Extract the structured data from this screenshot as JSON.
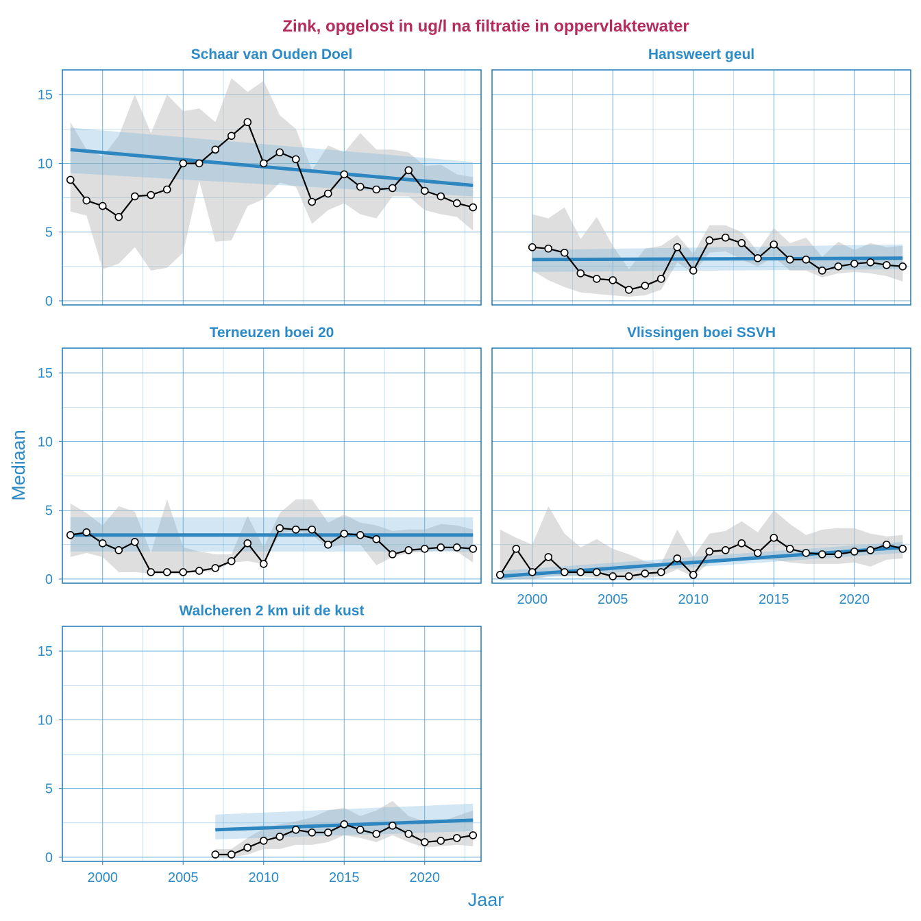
{
  "colors": {
    "title": "#B52B5C",
    "accent": "#2C8BC6",
    "trend": "#2E86C1",
    "band_gray": "#BDBDBD",
    "band_blue": "#6BAED6"
  },
  "chart_data": {
    "type": "line",
    "title": "Zink, opgelost in ug/l na filtratie in oppervlaktewater",
    "xlabel": "Jaar",
    "ylabel": "Mediaan",
    "xlim": [
      1997.5,
      2023.5
    ],
    "ylim": [
      -0.3,
      16.8
    ],
    "x_ticks": [
      2000,
      2005,
      2010,
      2015,
      2020
    ],
    "y_ticks": [
      0,
      5,
      10,
      15
    ],
    "panels": [
      {
        "name": "Schaar van Ouden Doel",
        "x": [
          1998,
          1999,
          2000,
          2001,
          2002,
          2003,
          2004,
          2005,
          2006,
          2007,
          2008,
          2009,
          2010,
          2011,
          2012,
          2013,
          2014,
          2015,
          2016,
          2017,
          2018,
          2019,
          2020,
          2021,
          2022,
          2023
        ],
        "median": [
          8.8,
          7.3,
          6.9,
          6.1,
          7.6,
          7.7,
          8.1,
          10.0,
          10.0,
          11.0,
          12.0,
          13.0,
          10.0,
          10.8,
          10.3,
          7.2,
          7.8,
          9.2,
          8.3,
          8.1,
          8.2,
          9.5,
          8.0,
          7.6,
          7.1,
          6.8
        ],
        "lower": [
          6.5,
          6.2,
          2.3,
          2.7,
          3.9,
          2.2,
          2.4,
          3.5,
          8.7,
          4.3,
          4.4,
          6.9,
          7.4,
          8.6,
          8.3,
          5.6,
          6.6,
          7.1,
          6.3,
          6.0,
          7.6,
          7.6,
          6.6,
          6.3,
          6.1,
          5.1
        ],
        "upper": [
          13.0,
          11.0,
          10.5,
          12.0,
          15.0,
          12.2,
          15.0,
          13.8,
          14.0,
          13.0,
          16.2,
          15.2,
          16.0,
          13.5,
          12.5,
          9.5,
          11.3,
          10.8,
          12.2,
          11.0,
          11.0,
          10.8,
          9.8,
          9.9,
          9.2,
          9.0
        ],
        "trend": {
          "start": [
            1998,
            11.0
          ],
          "end": [
            2023,
            8.4
          ]
        },
        "trend_ci_lower": [
          9.3,
          7.6
        ],
        "trend_ci_upper": [
          12.6,
          10.1
        ]
      },
      {
        "name": "Hansweert geul",
        "x": [
          2000,
          2001,
          2002,
          2003,
          2004,
          2005,
          2006,
          2007,
          2008,
          2009,
          2010,
          2011,
          2012,
          2013,
          2014,
          2015,
          2016,
          2017,
          2018,
          2019,
          2020,
          2021,
          2022,
          2023
        ],
        "median": [
          3.9,
          3.8,
          3.5,
          2.0,
          1.6,
          1.5,
          0.8,
          1.1,
          1.6,
          3.9,
          2.2,
          4.4,
          4.6,
          4.2,
          3.1,
          4.1,
          3.0,
          3.0,
          2.2,
          2.5,
          2.7,
          2.8,
          2.6,
          2.5
        ],
        "lower": [
          2.2,
          1.5,
          1.0,
          0.6,
          0.5,
          0.4,
          0.3,
          0.4,
          0.8,
          2.8,
          2.0,
          3.5,
          3.6,
          3.0,
          2.5,
          3.2,
          2.2,
          2.2,
          1.7,
          2.0,
          2.1,
          2.0,
          1.8,
          1.4
        ],
        "upper": [
          6.3,
          6.0,
          6.8,
          4.5,
          6.1,
          4.0,
          2.3,
          3.8,
          4.0,
          4.8,
          3.4,
          5.5,
          5.5,
          5.0,
          3.6,
          5.3,
          4.2,
          4.6,
          3.2,
          4.3,
          3.7,
          4.2,
          3.9,
          4.0
        ],
        "trend": {
          "start": [
            2000,
            3.0
          ],
          "end": [
            2023,
            3.1
          ]
        },
        "trend_ci_lower": [
          2.1,
          2.3
        ],
        "trend_ci_upper": [
          3.7,
          4.1
        ]
      },
      {
        "name": "Terneuzen boei 20",
        "x": [
          1998,
          1999,
          2000,
          2001,
          2002,
          2003,
          2004,
          2005,
          2006,
          2007,
          2008,
          2009,
          2010,
          2011,
          2012,
          2013,
          2014,
          2015,
          2016,
          2017,
          2018,
          2019,
          2020,
          2021,
          2022,
          2023
        ],
        "median": [
          3.2,
          3.4,
          2.6,
          2.1,
          2.7,
          0.5,
          0.5,
          0.5,
          0.6,
          0.8,
          1.3,
          2.6,
          1.1,
          3.7,
          3.6,
          3.6,
          2.5,
          3.3,
          3.2,
          2.9,
          1.8,
          2.1,
          2.2,
          2.3,
          2.3,
          2.2
        ],
        "lower": [
          1.6,
          1.9,
          1.6,
          0.5,
          0.5,
          0.4,
          0.4,
          0.4,
          0.5,
          0.6,
          1.2,
          1.3,
          1.1,
          3.3,
          3.5,
          3.2,
          2.3,
          2.5,
          2.5,
          1.0,
          1.6,
          1.9,
          2.0,
          2.1,
          2.0,
          1.2
        ],
        "upper": [
          5.5,
          4.8,
          3.9,
          5.3,
          4.9,
          1.9,
          5.8,
          2.3,
          2.0,
          1.8,
          1.8,
          4.6,
          2.3,
          4.8,
          5.8,
          5.8,
          4.1,
          4.7,
          4.1,
          3.9,
          3.5,
          3.6,
          3.6,
          4.0,
          3.9,
          3.6
        ],
        "trend": {
          "start": [
            1998,
            3.2
          ],
          "end": [
            2023,
            3.2
          ]
        },
        "trend_ci_lower": [
          2.0,
          2.0
        ],
        "trend_ci_upper": [
          4.5,
          4.5
        ]
      },
      {
        "name": "Vlissingen boei SSVH",
        "x": [
          1998,
          1999,
          2000,
          2001,
          2002,
          2003,
          2004,
          2005,
          2006,
          2007,
          2008,
          2009,
          2010,
          2011,
          2012,
          2013,
          2014,
          2015,
          2016,
          2017,
          2018,
          2019,
          2020,
          2021,
          2022,
          2023
        ],
        "median": [
          0.3,
          2.2,
          0.5,
          1.6,
          0.5,
          0.5,
          0.5,
          0.2,
          0.2,
          0.4,
          0.5,
          1.5,
          0.3,
          2.0,
          2.1,
          2.6,
          1.9,
          3.0,
          2.2,
          1.9,
          1.8,
          1.8,
          2.0,
          2.1,
          2.5,
          2.2
        ],
        "lower": [
          0.0,
          0.0,
          0.0,
          0.2,
          0.2,
          0.2,
          0.1,
          0.1,
          0.1,
          0.1,
          0.2,
          0.7,
          0.2,
          1.2,
          1.3,
          1.5,
          1.4,
          1.4,
          1.2,
          1.1,
          1.1,
          1.1,
          1.2,
          0.9,
          1.4,
          1.5
        ],
        "upper": [
          3.6,
          3.0,
          2.5,
          5.3,
          3.3,
          2.3,
          2.9,
          2.2,
          1.8,
          1.3,
          1.1,
          3.6,
          1.6,
          3.3,
          3.5,
          4.2,
          3.4,
          5.0,
          4.0,
          3.2,
          3.6,
          3.7,
          3.7,
          3.3,
          3.1,
          3.2
        ],
        "trend": {
          "start": [
            1998,
            0.2
          ],
          "end": [
            2023,
            2.3
          ]
        },
        "trend_ci_lower": [
          -0.1,
          1.9
        ],
        "trend_ci_upper": [
          0.6,
          2.7
        ]
      },
      {
        "name": "Walcheren 2 km uit de kust",
        "x": [
          2007,
          2008,
          2009,
          2010,
          2011,
          2012,
          2013,
          2014,
          2015,
          2016,
          2017,
          2018,
          2019,
          2020,
          2021,
          2022,
          2023
        ],
        "median": [
          0.2,
          0.2,
          0.7,
          1.2,
          1.5,
          2.0,
          1.8,
          1.8,
          2.4,
          2.0,
          1.7,
          2.3,
          1.7,
          1.1,
          1.2,
          1.4,
          1.6
        ],
        "lower": [
          0.0,
          0.0,
          0.2,
          0.6,
          0.6,
          0.9,
          0.9,
          1.1,
          1.6,
          1.4,
          1.1,
          1.6,
          1.1,
          0.7,
          0.8,
          0.9,
          0.8
        ],
        "upper": [
          0.6,
          0.6,
          1.4,
          2.1,
          2.4,
          2.6,
          2.9,
          3.4,
          3.6,
          3.0,
          3.4,
          4.1,
          3.0,
          2.6,
          2.6,
          3.0,
          3.4
        ],
        "trend": {
          "start": [
            2007,
            2.0
          ],
          "end": [
            2023,
            2.7
          ]
        },
        "trend_ci_lower": [
          1.3,
          1.9
        ],
        "trend_ci_upper": [
          3.1,
          3.9
        ]
      }
    ]
  }
}
